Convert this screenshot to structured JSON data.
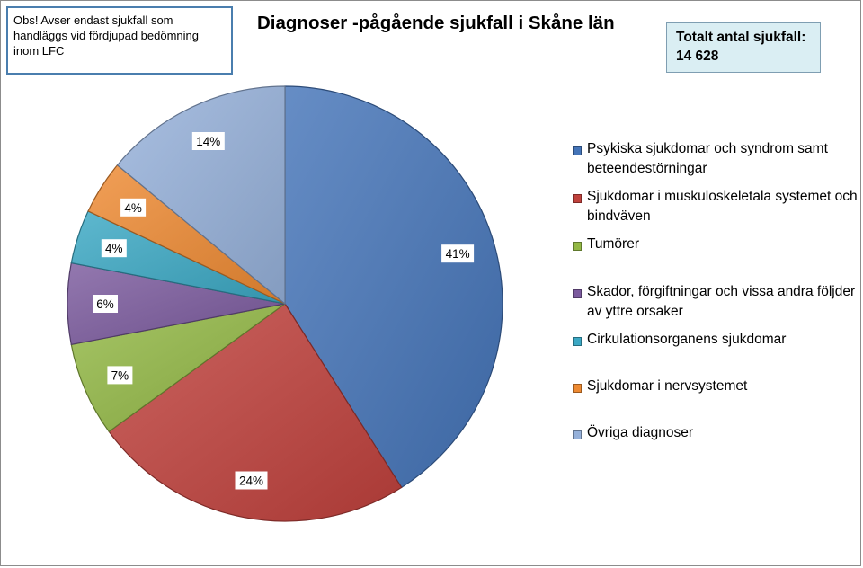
{
  "note": {
    "lines": [
      "Obs! Avser endast sjukfall som",
      "handläggs vid fördjupad bedömning",
      "inom LFC"
    ]
  },
  "total": {
    "label": "Totalt antal sjukfall:",
    "value": "14 628"
  },
  "chart_data": {
    "type": "pie",
    "title": "Diagnoser -pågående sjukfall i Skåne län",
    "legend_position": "right",
    "slices": [
      {
        "name": "Psykiska sjukdomar och syndrom samt beteendestörningar",
        "value": 41,
        "label": "41%",
        "color": "#4474b8"
      },
      {
        "name": "Sjukdomar i muskuloskeletala systemet och bindväven",
        "value": 24,
        "label": "24%",
        "color": "#c0413c"
      },
      {
        "name": "Tumörer",
        "value": 7,
        "label": "7%",
        "color": "#93b845"
      },
      {
        "name": "Skador, förgiftningar och vissa andra följder av yttre orsaker",
        "value": 6,
        "label": "6%",
        "color": "#7b5a9e"
      },
      {
        "name": "Cirkulationsorganens sjukdomar",
        "value": 4,
        "label": "4%",
        "color": "#3ba8c4"
      },
      {
        "name": "Sjukdomar i nervsystemet",
        "value": 4,
        "label": "4%",
        "color": "#ee8a32"
      },
      {
        "name": "Övriga diagnoser",
        "value": 14,
        "label": "14%",
        "color": "#96b1da"
      }
    ]
  }
}
